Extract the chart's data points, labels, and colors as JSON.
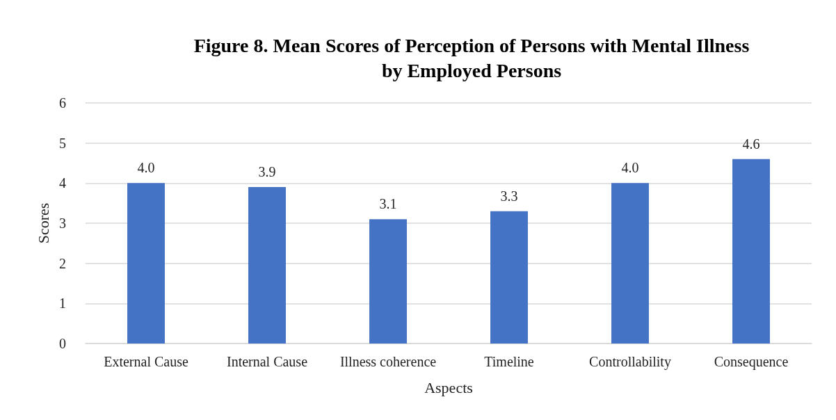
{
  "chart_data": {
    "type": "bar",
    "title": "Figure 8. Mean Scores of Perception of Persons with Mental Illness\nby Employed Persons",
    "xlabel": "Aspects",
    "ylabel": "Scores",
    "categories": [
      "External Cause",
      "Internal Cause",
      "Illness coherence",
      "Timeline",
      "Controllability",
      "Consequence"
    ],
    "values": [
      4.0,
      3.9,
      3.1,
      3.3,
      4.0,
      4.6
    ],
    "value_labels": [
      "4.0",
      "3.9",
      "3.1",
      "3.3",
      "4.0",
      "4.6"
    ],
    "color": "#4472c4",
    "ylim": [
      0,
      6
    ],
    "yticks": [
      0,
      1,
      2,
      3,
      4,
      5,
      6
    ],
    "grid": "y"
  }
}
